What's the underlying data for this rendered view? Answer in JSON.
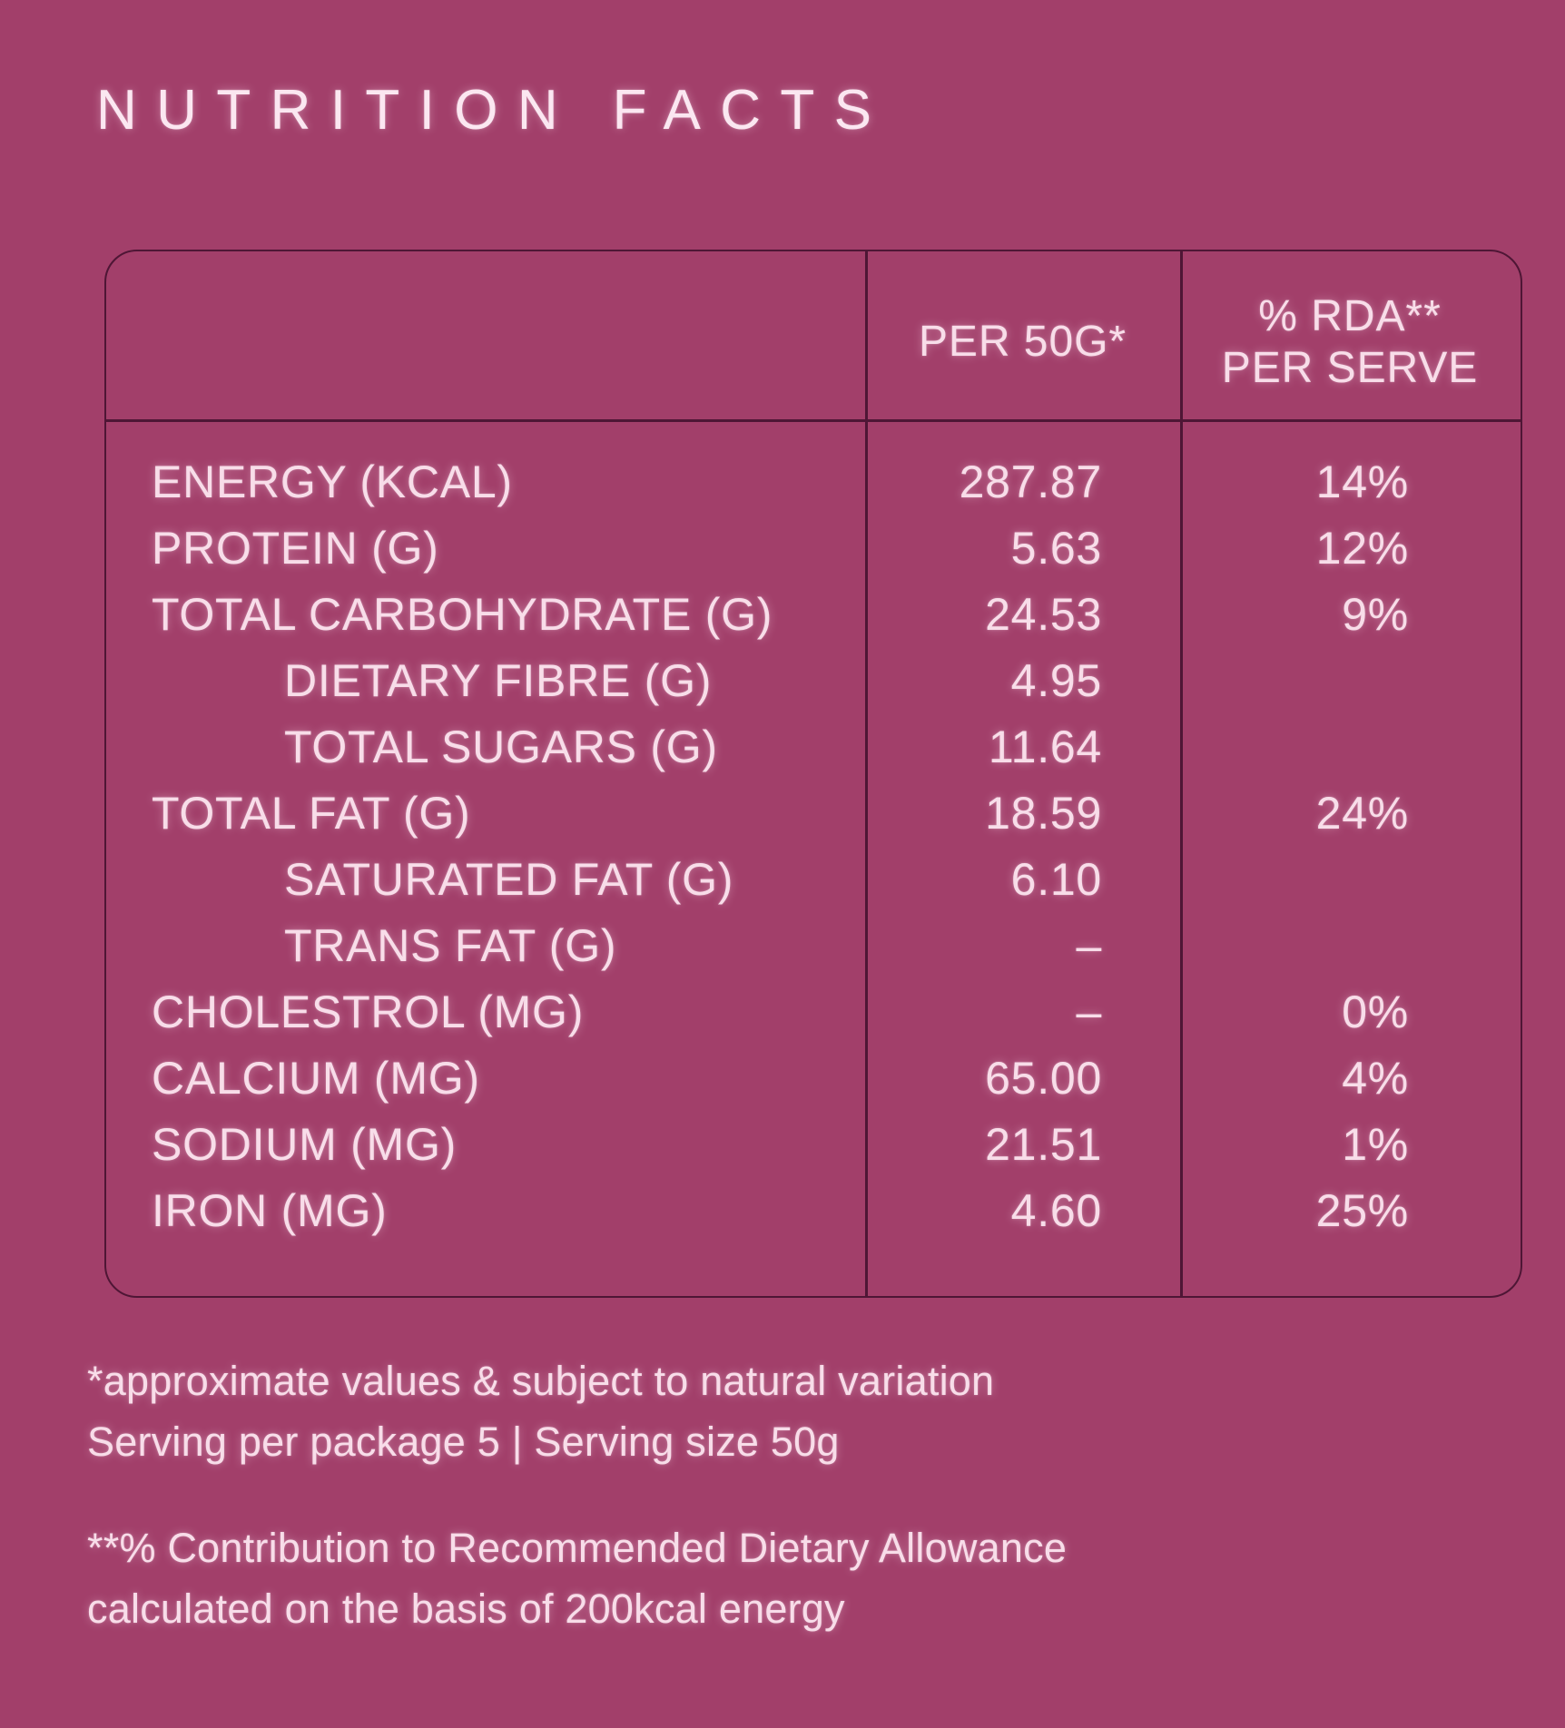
{
  "page": {
    "title": "NUTRITION FACTS"
  },
  "colors": {
    "background": "#a23f6a",
    "text": "#f8dde9",
    "line": "#4e1635"
  },
  "table": {
    "headers": {
      "per_serving": "PER 50G*",
      "rda_line1": "% RDA**",
      "rda_line2": "PER SERVE"
    },
    "rows": [
      {
        "label": "ENERGY (KCAL)",
        "per_50g": "287.87",
        "rda": "14%"
      },
      {
        "label": "PROTEIN (G)",
        "per_50g": "5.63",
        "rda": "12%"
      },
      {
        "label": "TOTAL CARBOHYDRATE (G)",
        "per_50g": "24.53",
        "rda": "9%"
      },
      {
        "label": "DIETARY FIBRE (G)",
        "per_50g": "4.95",
        "rda": ""
      },
      {
        "label": "TOTAL SUGARS (G)",
        "per_50g": "11.64",
        "rda": ""
      },
      {
        "label": "TOTAL FAT (G)",
        "per_50g": "18.59",
        "rda": "24%"
      },
      {
        "label": "SATURATED FAT (G)",
        "per_50g": "6.10",
        "rda": ""
      },
      {
        "label": "TRANS FAT (G)",
        "per_50g": "–",
        "rda": ""
      },
      {
        "label": "CHOLESTROL (MG)",
        "per_50g": "–",
        "rda": "0%"
      },
      {
        "label": "CALCIUM (MG)",
        "per_50g": "65.00",
        "rda": "4%"
      },
      {
        "label": "SODIUM (MG)",
        "per_50g": "21.51",
        "rda": "1%"
      },
      {
        "label": "IRON (MG)",
        "per_50g": "4.60",
        "rda": "25%"
      }
    ]
  },
  "footnotes": {
    "approx_values": "*approximate values & subject to natural variation",
    "serving_info": "Serving per package 5  |  Serving size 50g",
    "rda_note_line1": "**% Contribution to Recommended Dietary Allowance",
    "rda_note_line2": "calculated on the basis of 200kcal energy"
  }
}
